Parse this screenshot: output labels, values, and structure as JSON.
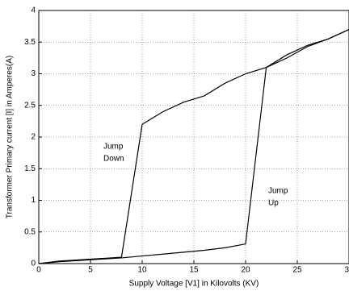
{
  "chart_data": {
    "type": "line",
    "xlabel": "Supply Voltage [V1] in Kilovolts (KV)",
    "ylabel": "Transformer Primary current [I] in Amperes(A)",
    "x": [
      0,
      2,
      5,
      8,
      10,
      12,
      14,
      16,
      18,
      20,
      22,
      24,
      26,
      28,
      30
    ],
    "series": [
      {
        "color": "#000000",
        "values": [
          0,
          0.03,
          0.06,
          0.09,
          0.12,
          0.15,
          0.18,
          0.21,
          0.25,
          0.31,
          3.1,
          3.25,
          3.43,
          3.55,
          3.7
        ]
      },
      {
        "color": "#000000",
        "values": [
          0,
          0.04,
          0.07,
          0.1,
          2.2,
          2.4,
          2.55,
          2.65,
          2.85,
          3.0,
          3.1,
          3.3,
          3.45,
          3.55,
          3.7
        ]
      }
    ],
    "annotations": [
      [
        "Jump",
        "Down"
      ],
      [
        "Jump",
        "Up"
      ]
    ],
    "xlim": [
      0,
      30
    ],
    "xticks": [
      0,
      5,
      10,
      15,
      20,
      25,
      30
    ],
    "ylim": [
      0,
      4
    ],
    "yticks": [
      0,
      0.5,
      1,
      1.5,
      2,
      2.5,
      3,
      3.5,
      4
    ],
    "grid": true
  }
}
